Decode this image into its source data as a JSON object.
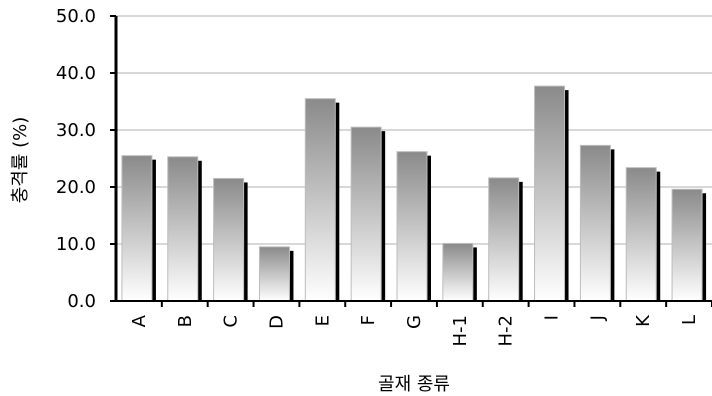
{
  "chart_data": {
    "type": "bar",
    "categories": [
      "A",
      "B",
      "C",
      "D",
      "E",
      "F",
      "G",
      "H-1",
      "H-2",
      "I",
      "J",
      "K",
      "L"
    ],
    "values": [
      25.5,
      25.3,
      21.5,
      9.5,
      35.5,
      30.5,
      26.2,
      10.1,
      21.6,
      37.7,
      27.3,
      23.4,
      19.6
    ],
    "title": "",
    "xlabel": "골재 종류",
    "ylabel": "충격률 (%)",
    "ylim": [
      0,
      50
    ],
    "yticks": [
      "0.0",
      "10.0",
      "20.0",
      "30.0",
      "40.0",
      "50.0"
    ],
    "grid": true,
    "legend": "none"
  }
}
